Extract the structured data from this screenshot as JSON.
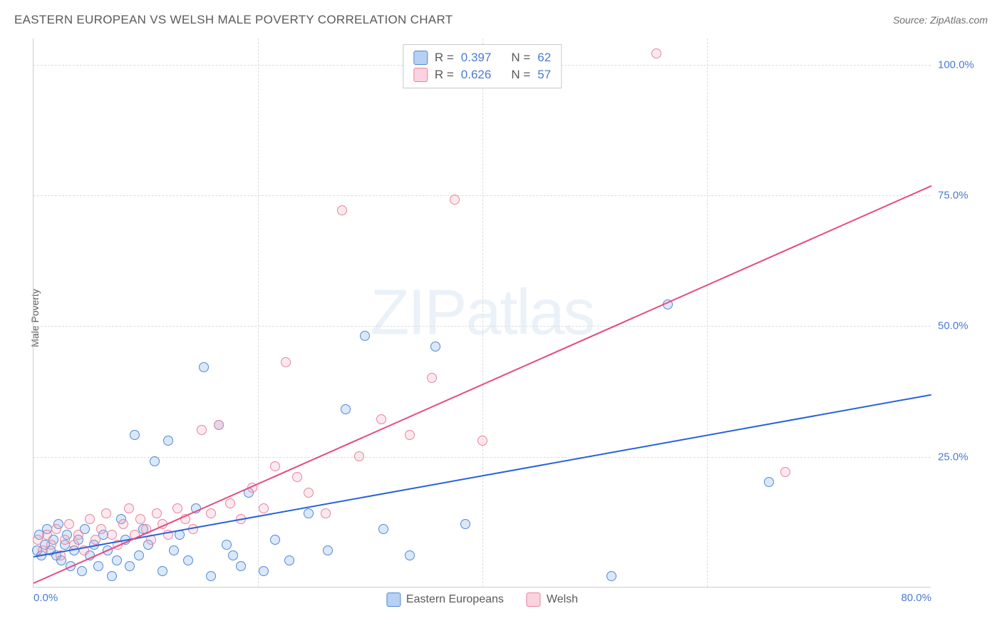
{
  "title": "EASTERN EUROPEAN VS WELSH MALE POVERTY CORRELATION CHART",
  "source_label": "Source: ZipAtlas.com",
  "y_axis_label": "Male Poverty",
  "watermark_bold": "ZIP",
  "watermark_light": "atlas",
  "chart": {
    "type": "scatter",
    "xlim": [
      0,
      80
    ],
    "ylim": [
      0,
      105
    ],
    "x_ticks": [
      0,
      20,
      40,
      60,
      80
    ],
    "x_tick_labels": [
      "0.0%",
      "",
      "",
      "",
      "80.0%"
    ],
    "y_ticks": [
      25,
      50,
      75,
      100
    ],
    "y_tick_labels": [
      "25.0%",
      "50.0%",
      "75.0%",
      "100.0%"
    ],
    "background_color": "#ffffff",
    "grid_color": "#dcdcdc",
    "axis_color": "#cccccc",
    "tick_label_color": "#4a7bd0",
    "marker_radius": 7,
    "marker_stroke_width": 1.5,
    "marker_fill_opacity": 0.25,
    "trend_line_width": 2
  },
  "series": [
    {
      "name": "Eastern Europeans",
      "color": "#6fa3e8",
      "stroke": "#5089d4",
      "line_color": "#2962d9",
      "r_value": "0.397",
      "n_value": "62",
      "trend": {
        "x1": 0,
        "y1": 6,
        "x2": 80,
        "y2": 37
      },
      "points": [
        [
          0.3,
          7
        ],
        [
          0.5,
          10
        ],
        [
          0.7,
          6
        ],
        [
          1,
          8
        ],
        [
          1.2,
          11
        ],
        [
          1.5,
          7
        ],
        [
          1.8,
          9
        ],
        [
          2,
          6
        ],
        [
          2.2,
          12
        ],
        [
          2.5,
          5
        ],
        [
          2.8,
          8
        ],
        [
          3,
          10
        ],
        [
          3.3,
          4
        ],
        [
          3.6,
          7
        ],
        [
          4,
          9
        ],
        [
          4.3,
          3
        ],
        [
          4.6,
          11
        ],
        [
          5,
          6
        ],
        [
          5.4,
          8
        ],
        [
          5.8,
          4
        ],
        [
          6.2,
          10
        ],
        [
          6.6,
          7
        ],
        [
          7,
          2
        ],
        [
          7.4,
          5
        ],
        [
          7.8,
          13
        ],
        [
          8.2,
          9
        ],
        [
          8.6,
          4
        ],
        [
          9,
          29
        ],
        [
          9.4,
          6
        ],
        [
          9.8,
          11
        ],
        [
          10.2,
          8
        ],
        [
          10.8,
          24
        ],
        [
          11.5,
          3
        ],
        [
          12,
          28
        ],
        [
          12.5,
          7
        ],
        [
          13,
          10
        ],
        [
          13.8,
          5
        ],
        [
          14.5,
          15
        ],
        [
          15.2,
          42
        ],
        [
          15.8,
          2
        ],
        [
          16.5,
          31
        ],
        [
          17.2,
          8
        ],
        [
          17.8,
          6
        ],
        [
          18.5,
          4
        ],
        [
          19.2,
          18
        ],
        [
          20.5,
          3
        ],
        [
          21.5,
          9
        ],
        [
          22.8,
          5
        ],
        [
          24.5,
          14
        ],
        [
          26.2,
          7
        ],
        [
          27.8,
          34
        ],
        [
          29.5,
          48
        ],
        [
          31.2,
          11
        ],
        [
          33.5,
          6
        ],
        [
          35.8,
          46
        ],
        [
          38.5,
          12
        ],
        [
          51.5,
          2
        ],
        [
          56.5,
          54
        ],
        [
          65.5,
          20
        ]
      ]
    },
    {
      "name": "Welsh",
      "color": "#f5a7bd",
      "stroke": "#e8839f",
      "line_color": "#e64980",
      "r_value": "0.626",
      "n_value": "57",
      "trend": {
        "x1": 0,
        "y1": 1,
        "x2": 80,
        "y2": 77
      },
      "points": [
        [
          0.4,
          9
        ],
        [
          0.8,
          7
        ],
        [
          1.2,
          10
        ],
        [
          1.6,
          8
        ],
        [
          2,
          11
        ],
        [
          2.4,
          6
        ],
        [
          2.8,
          9
        ],
        [
          3.2,
          12
        ],
        [
          3.6,
          8
        ],
        [
          4,
          10
        ],
        [
          4.5,
          7
        ],
        [
          5,
          13
        ],
        [
          5.5,
          9
        ],
        [
          6,
          11
        ],
        [
          6.5,
          14
        ],
        [
          7,
          10
        ],
        [
          7.5,
          8
        ],
        [
          8,
          12
        ],
        [
          8.5,
          15
        ],
        [
          9,
          10
        ],
        [
          9.5,
          13
        ],
        [
          10,
          11
        ],
        [
          10.5,
          9
        ],
        [
          11,
          14
        ],
        [
          11.5,
          12
        ],
        [
          12,
          10
        ],
        [
          12.8,
          15
        ],
        [
          13.5,
          13
        ],
        [
          14.2,
          11
        ],
        [
          15,
          30
        ],
        [
          15.8,
          14
        ],
        [
          16.5,
          31
        ],
        [
          17.5,
          16
        ],
        [
          18.5,
          13
        ],
        [
          19.5,
          19
        ],
        [
          20.5,
          15
        ],
        [
          21.5,
          23
        ],
        [
          22.5,
          43
        ],
        [
          23.5,
          21
        ],
        [
          24.5,
          18
        ],
        [
          26,
          14
        ],
        [
          27.5,
          72
        ],
        [
          29,
          25
        ],
        [
          31,
          32
        ],
        [
          33.5,
          29
        ],
        [
          35.5,
          40
        ],
        [
          37.5,
          74
        ],
        [
          40,
          28
        ],
        [
          55.5,
          102
        ],
        [
          67,
          22
        ]
      ]
    }
  ],
  "legend_top": {
    "r_prefix": "R =",
    "n_prefix": "N ="
  },
  "legend_bottom_labels": [
    "Eastern Europeans",
    "Welsh"
  ]
}
